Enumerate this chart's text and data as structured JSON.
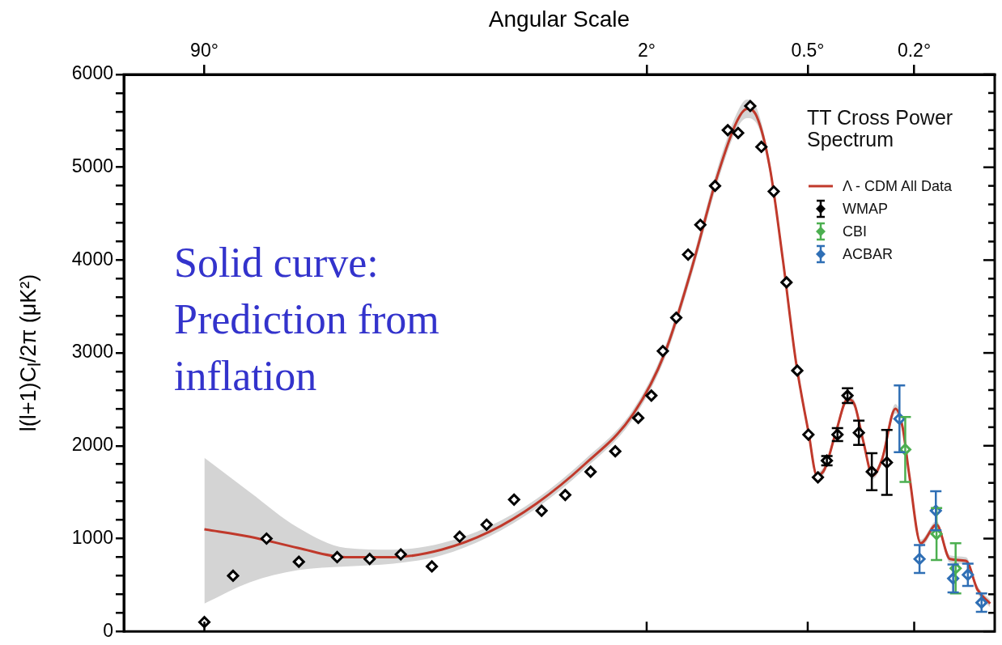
{
  "chart_data": {
    "type": "scatter",
    "xlabel": "Angular Scale",
    "ylabel": "l(l+1)C$_{l}$/2π (μK²)",
    "legend_title": "TT Cross Power Spectrum",
    "legend": "top right",
    "grid": false,
    "log": "x",
    "xlim": [
      180,
      0.1
    ],
    "xticks": [
      {
        "value": 90,
        "label": "90°"
      },
      {
        "value": 2,
        "label": "2°"
      },
      {
        "value": 0.5,
        "label": "0.5°"
      },
      {
        "value": 0.2,
        "label": "0.2°"
      }
    ],
    "ylim": [
      0,
      6000
    ],
    "yticks": [
      0,
      {
        "value": 200,
        "label": null
      },
      {
        "value": 400,
        "label": null
      },
      {
        "value": 600,
        "label": null
      },
      {
        "value": 800,
        "label": null
      },
      1000,
      {
        "value": 1200,
        "label": null
      },
      {
        "value": 1400,
        "label": null
      },
      {
        "value": 1600,
        "label": null
      },
      {
        "value": 1800,
        "label": null
      },
      2000,
      {
        "value": 2200,
        "label": null
      },
      {
        "value": 2400,
        "label": null
      },
      {
        "value": 2600,
        "label": null
      },
      {
        "value": 2800,
        "label": null
      },
      3000,
      {
        "value": 3200,
        "label": null
      },
      {
        "value": 3400,
        "label": null
      },
      {
        "value": 3600,
        "label": null
      },
      {
        "value": 3800,
        "label": null
      },
      4000,
      {
        "value": 4200,
        "label": null
      },
      {
        "value": 4400,
        "label": null
      },
      {
        "value": 4600,
        "label": null
      },
      {
        "value": 4800,
        "label": null
      },
      5000,
      {
        "value": 5200,
        "label": null
      },
      {
        "value": 5400,
        "label": null
      },
      {
        "value": 5600,
        "label": null
      },
      {
        "value": 5800,
        "label": null
      },
      6000
    ],
    "annotations": [
      "Solid curve: Prediction from inflation"
    ],
    "series": [
      {
        "name": "Λ - CDM All Data",
        "type": "line",
        "marker": "none",
        "line_style": "solid",
        "color": "#c0392b",
        "x": [
          90,
          60.8,
          40.3,
          26.7,
          17.7,
          11.7,
          7.78,
          5.15,
          3.41,
          2.26,
          1.71,
          1.36,
          1.09,
          0.918,
          0.844,
          0.776,
          0.693,
          0.619,
          0.553,
          0.497,
          0.462,
          0.432,
          0.392,
          0.355,
          0.335,
          0.31,
          0.286,
          0.264,
          0.235,
          0.221,
          0.209,
          0.189,
          0.165,
          0.147,
          0.128,
          0.116,
          0.104
        ],
        "values": [
          1100,
          1020,
          900,
          800,
          800,
          880,
          1070,
          1380,
          1800,
          2330,
          3000,
          3900,
          4900,
          5500,
          5630,
          5550,
          5000,
          4000,
          2900,
          2150,
          1680,
          1750,
          2150,
          2500,
          2450,
          2050,
          1680,
          1850,
          2400,
          2200,
          1700,
          950,
          1150,
          780,
          760,
          450,
          300
        ],
        "lower": [
          300,
          530,
          660,
          700,
          730,
          820,
          1020,
          1330,
          1750,
          2280,
          2940,
          3830,
          4820,
          5420,
          5530,
          5470,
          4940,
          3950,
          2860,
          2110,
          1640,
          1710,
          2110,
          2460,
          2410,
          2010,
          1640,
          1810,
          2350,
          2150,
          1660,
          910,
          1110,
          740,
          720,
          410,
          260
        ],
        "upper": [
          1870,
          1500,
          1120,
          900,
          880,
          950,
          1130,
          1430,
          1850,
          2380,
          3060,
          3970,
          4980,
          5590,
          5730,
          5640,
          5060,
          4050,
          2940,
          2190,
          1720,
          1790,
          2190,
          2540,
          2490,
          2090,
          1720,
          1890,
          2450,
          2250,
          1740,
          990,
          1190,
          820,
          800,
          490,
          340
        ]
      },
      {
        "name": "WMAP",
        "marker": "diamond",
        "color": "#000000",
        "x": [
          90,
          70.3,
          52.7,
          39.9,
          28.7,
          21.7,
          16.6,
          12.7,
          10,
          7.93,
          6.26,
          4.94,
          4.03,
          3.24,
          2.62,
          2.15,
          1.92,
          1.74,
          1.55,
          1.4,
          1.26,
          1.11,
          0.995,
          0.91,
          0.82,
          0.745,
          0.67,
          0.6,
          0.547,
          0.497,
          0.458,
          0.424,
          0.387,
          0.355,
          0.322,
          0.288,
          0.253
        ],
        "values": [
          100,
          600,
          1000,
          750,
          800,
          780,
          830,
          700,
          1020,
          1150,
          1420,
          1300,
          1470,
          1720,
          1940,
          2300,
          2540,
          3020,
          3380,
          4060,
          4380,
          4800,
          5400,
          5370,
          5660,
          5220,
          4740,
          3760,
          2810,
          2120,
          1660,
          1840,
          2120,
          2540,
          2140,
          1720,
          1820
        ],
        "errors": [
          null,
          null,
          null,
          null,
          null,
          null,
          null,
          null,
          null,
          null,
          null,
          null,
          null,
          null,
          null,
          null,
          null,
          null,
          null,
          null,
          null,
          null,
          null,
          null,
          null,
          null,
          null,
          null,
          null,
          null,
          null,
          50,
          70,
          80,
          130,
          200,
          350
        ]
      },
      {
        "name": "CBI",
        "marker": "diamond",
        "color": "#4caf50",
        "x": [
          0.216,
          0.165,
          0.14
        ],
        "values": [
          1960,
          1050,
          680
        ],
        "errors": [
          350,
          280,
          270
        ]
      },
      {
        "name": "ACBAR",
        "marker": "diamond",
        "color": "#2f6fb5",
        "x": [
          0.227,
          0.191,
          0.166,
          0.143,
          0.126,
          0.112
        ],
        "values": [
          2290,
          780,
          1300,
          570,
          610,
          310
        ],
        "errors": [
          360,
          150,
          210,
          150,
          120,
          100
        ]
      }
    ]
  }
}
